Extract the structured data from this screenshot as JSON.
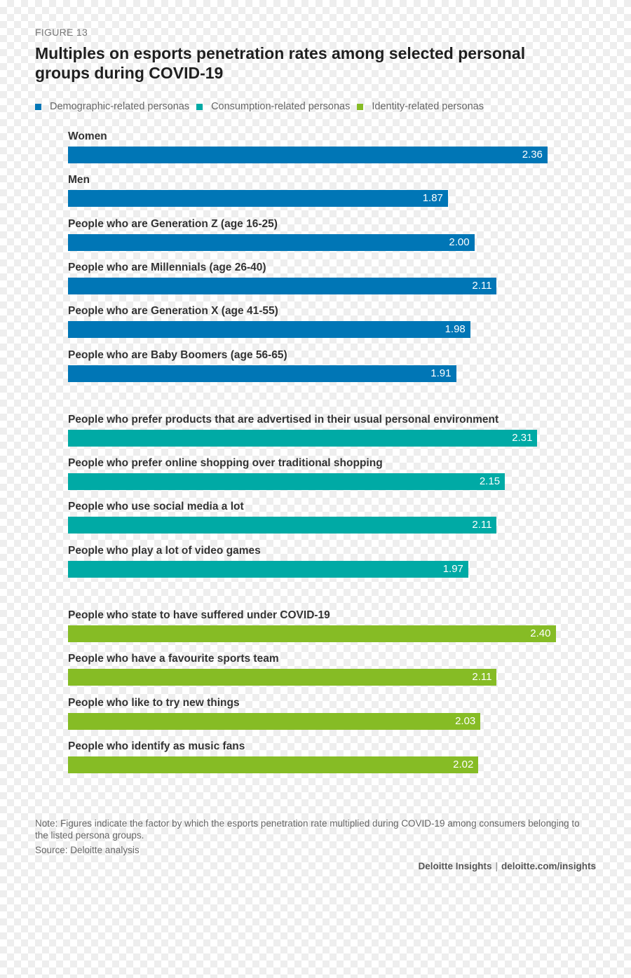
{
  "figure_label": "FIGURE 13",
  "title": "Multiples on esports penetration rates among selected personal groups during COVID-19",
  "legend": [
    {
      "label": "Demographic-related personas",
      "color": "#0076b6"
    },
    {
      "label": "Consumption-related personas",
      "color": "#00aaa5"
    },
    {
      "label": "Identity-related personas",
      "color": "#86bc25"
    }
  ],
  "chart_data": {
    "type": "bar",
    "orientation": "horizontal",
    "xlim": [
      0,
      2.45
    ],
    "grid": false,
    "legend_position": "top",
    "categories": [
      "Women",
      "Men",
      "People who are Generation Z (age 16-25)",
      "People who are Millennials (age 26-40)",
      "People who are Generation X (age 41-55)",
      "People who are Baby Boomers (age 56-65)",
      "People who prefer products that are advertised in their usual personal environment",
      "People who prefer online shopping over traditional shopping",
      "People who use social media a lot",
      "People who play a lot of video games",
      "People who state to have suffered under COVID-19",
      "People who have a favourite sports team",
      "People who like to try new things",
      "People who identify as music fans"
    ],
    "values": [
      2.36,
      1.87,
      2.0,
      2.11,
      1.98,
      1.91,
      2.31,
      2.15,
      2.11,
      1.97,
      2.4,
      2.11,
      2.03,
      2.02
    ],
    "value_labels": [
      "2.36",
      "1.87",
      "2.00",
      "2.11",
      "1.98",
      "1.91",
      "2.31",
      "2.15",
      "2.11",
      "1.97",
      "2.40",
      "2.11",
      "2.03",
      "2.02"
    ],
    "groups": [
      0,
      0,
      0,
      0,
      0,
      0,
      1,
      1,
      1,
      1,
      2,
      2,
      2,
      2
    ]
  },
  "note": "Note: Figures indicate the factor by which the esports penetration rate multiplied during COVID-19 among consumers belonging to the listed persona groups.",
  "source": "Source: Deloitte analysis",
  "credit": {
    "brand": "Deloitte Insights",
    "separator": "|",
    "url": "deloitte.com/insights"
  }
}
